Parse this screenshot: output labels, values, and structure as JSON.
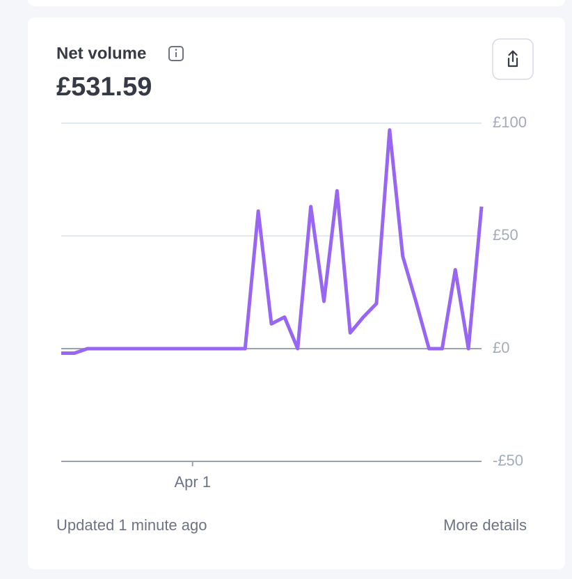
{
  "chart_data": {
    "type": "line",
    "title": "Net volume",
    "subtitle": "£531.59",
    "categories": [
      null,
      null,
      null,
      null,
      null,
      null,
      null,
      null,
      null,
      null,
      "Apr 1",
      null,
      null,
      null,
      null,
      null,
      null,
      null,
      null,
      null,
      null,
      null,
      null,
      null,
      null,
      null,
      null,
      null,
      null,
      null,
      null,
      null,
      null
    ],
    "series": [
      {
        "name": "Net volume",
        "color": "#9966f4",
        "values": [
          -2,
          -2,
          0,
          0,
          0,
          0,
          0,
          0,
          0,
          0,
          0,
          0,
          0,
          0,
          0,
          61,
          11,
          14,
          0,
          63,
          21,
          70,
          7,
          14,
          20,
          97,
          41,
          21,
          0,
          0,
          35,
          0,
          63
        ]
      }
    ],
    "ylim": [
      -50,
      100
    ],
    "yticks": [
      {
        "value": -50,
        "label": "-£50"
      },
      {
        "value": 0,
        "label": "£0"
      },
      {
        "value": 50,
        "label": "£50"
      },
      {
        "value": 100,
        "label": "£100"
      }
    ],
    "grid": true
  },
  "footer": {
    "updated": "Updated 1 minute ago",
    "link": "More details"
  }
}
